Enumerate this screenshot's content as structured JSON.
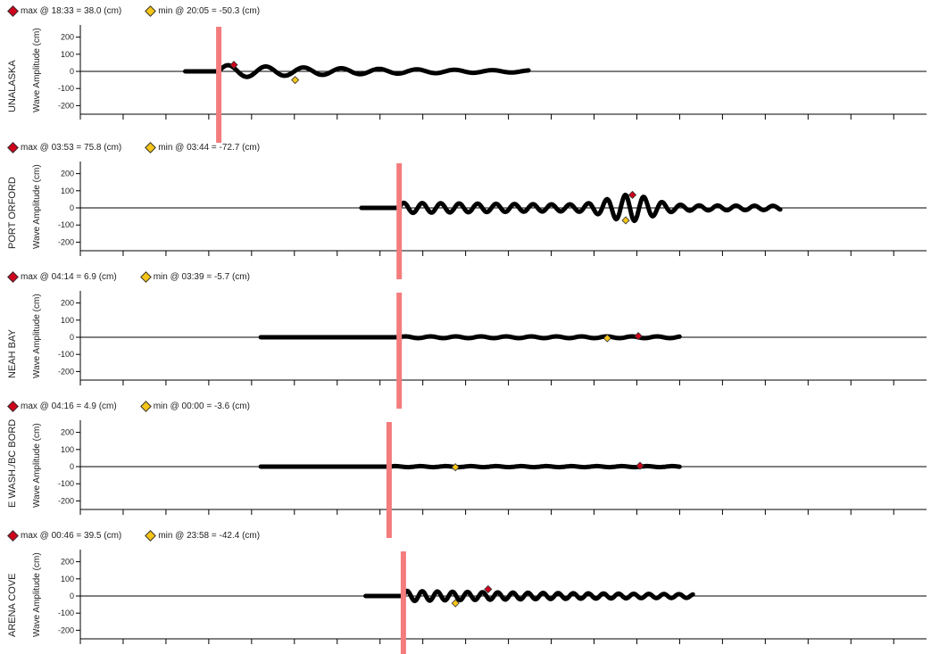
{
  "ylabel": "Wave Amplitude (cm)",
  "colors": {
    "max": "#d0021b",
    "min": "#f5c518",
    "arrival": "#f47c7c",
    "trace": "#000000"
  },
  "panels": [
    {
      "station": "UNALASKA",
      "max_label": "max @  18:33 = 38.0 (cm)",
      "min_label": "min @  20:05 = -50.3 (cm)"
    },
    {
      "station": "PORT ORFORD",
      "max_label": "max @  03:53 = 75.8 (cm)",
      "min_label": "min @  03:44 = -72.7 (cm)"
    },
    {
      "station": "NEAH BAY",
      "max_label": "max @  04:14 = 6.9 (cm)",
      "min_label": "min @  03:39 = -5.7 (cm)"
    },
    {
      "station": "E WASH./BC BORD",
      "max_label": "max @  04:16 = 4.9 (cm)",
      "min_label": "min @  00:00 = -3.6 (cm)"
    },
    {
      "station": "ARENA COVE",
      "max_label": "max @  00:46 = 39.5 (cm)",
      "min_label": "min @  23:58 = -42.4 (cm)"
    }
  ],
  "chart_data": [
    {
      "type": "line",
      "station": "UNALASKA",
      "ylabel": "Wave Amplitude (cm)",
      "yticks": [
        200,
        100,
        0,
        -100,
        -200
      ],
      "ylim": [
        -250,
        250
      ],
      "x_range": [
        0,
        100
      ],
      "trace_start": 12.5,
      "trace_end": 53.5,
      "arrival": 16.5,
      "amplitude": 38,
      "period": 4.5,
      "decay": 0.5,
      "max": {
        "x": 18.3,
        "y": 38.0
      },
      "min": {
        "x": 25.6,
        "y": -50.3
      }
    },
    {
      "type": "line",
      "station": "PORT ORFORD",
      "ylabel": "Wave Amplitude (cm)",
      "yticks": [
        200,
        100,
        0,
        -100,
        -200
      ],
      "ylim": [
        -250,
        250
      ],
      "x_range": [
        0,
        100
      ],
      "trace_start": 33.5,
      "trace_end": 83.5,
      "arrival": 38.0,
      "amplitude": 30,
      "period": 2.2,
      "decay": 0.2,
      "peak_center": 65.5,
      "peak_amp": 75,
      "max": {
        "x": 65.8,
        "y": 75.8
      },
      "min": {
        "x": 65.0,
        "y": -72.7
      }
    },
    {
      "type": "line",
      "station": "NEAH BAY",
      "ylabel": "Wave Amplitude (cm)",
      "yticks": [
        200,
        100,
        0,
        -100,
        -200
      ],
      "ylim": [
        -250,
        250
      ],
      "x_range": [
        0,
        100
      ],
      "trace_start": 21.5,
      "trace_end": 71.5,
      "arrival": 38.0,
      "amplitude": 5,
      "period": 3.0,
      "decay": 0.0,
      "max": {
        "x": 66.5,
        "y": 6.9
      },
      "min": {
        "x": 62.8,
        "y": -5.7
      }
    },
    {
      "type": "line",
      "station": "E WASH./BC BORD",
      "ylabel": "Wave Amplitude (cm)",
      "yticks": [
        200,
        100,
        0,
        -100,
        -200
      ],
      "ylim": [
        -250,
        250
      ],
      "x_range": [
        0,
        100
      ],
      "trace_start": 21.5,
      "trace_end": 71.5,
      "arrival": 36.8,
      "amplitude": 3,
      "period": 3.0,
      "decay": 0.0,
      "max": {
        "x": 66.7,
        "y": 4.9
      },
      "min": {
        "x": 44.7,
        "y": -3.6
      }
    },
    {
      "type": "line",
      "station": "ARENA COVE",
      "ylabel": "Wave Amplitude (cm)",
      "yticks": [
        200,
        100,
        0,
        -100,
        -200
      ],
      "ylim": [
        -250,
        250
      ],
      "x_range": [
        0,
        100
      ],
      "trace_start": 34.0,
      "trace_end": 73.0,
      "arrival": 38.5,
      "amplitude": 30,
      "period": 1.8,
      "decay": 0.3,
      "max": {
        "x": 48.6,
        "y": 39.5
      },
      "min": {
        "x": 44.7,
        "y": -42.4
      }
    }
  ]
}
